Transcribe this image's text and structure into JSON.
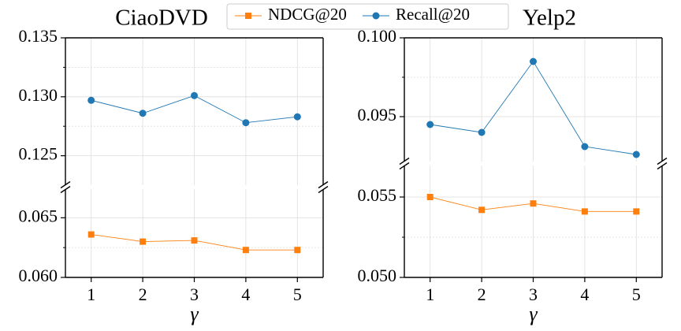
{
  "chart_data": [
    {
      "type": "line",
      "title": "CiaoDVD",
      "xlabel": "γ",
      "x": [
        1,
        2,
        3,
        4,
        5
      ],
      "xlim": [
        0.5,
        5.5
      ],
      "xticks": [
        1,
        2,
        3,
        4,
        5
      ],
      "grid": true,
      "legend": "top center",
      "panels": [
        {
          "ylim": [
            0.1225,
            0.135
          ],
          "yticks": [
            0.125,
            {
              "value": 0.13,
              "label": "0.130"
            },
            0.135
          ],
          "minor_yticks": [
            0.1275,
            0.1325
          ]
        },
        {
          "ylim": [
            0.06,
            0.0674
          ],
          "yticks": [
            {
              "value": 0.06,
              "label": "0.060"
            },
            0.065
          ],
          "minor_yticks": [
            0.0625
          ]
        }
      ],
      "series": [
        {
          "name": "NDCG@20",
          "color": "#ff7f0e",
          "marker": "square",
          "values": [
            0.0636,
            0.063,
            0.0631,
            0.0623,
            0.0623
          ]
        },
        {
          "name": "Recall@20",
          "color": "#1f77b4",
          "marker": "circle",
          "values": [
            0.1297,
            0.1286,
            0.1301,
            0.1278,
            0.1283
          ]
        }
      ]
    },
    {
      "type": "line",
      "title": "Yelp2",
      "xlabel": "γ",
      "x": [
        1,
        2,
        3,
        4,
        5
      ],
      "xlim": [
        0.5,
        5.5
      ],
      "xticks": [
        1,
        2,
        3,
        4,
        5
      ],
      "grid": true,
      "panels": [
        {
          "ylim": [
            0.09215,
            0.1
          ],
          "yticks": [
            0.095,
            {
              "value": 0.1,
              "label": "0.100"
            }
          ],
          "minor_yticks": [
            0.0975
          ]
        },
        {
          "ylim": [
            0.05,
            0.05696
          ],
          "yticks": [
            {
              "value": 0.05,
              "label": "0.050"
            },
            0.055
          ],
          "minor_yticks": [
            0.0525
          ]
        }
      ],
      "series": [
        {
          "color": "#ff7f0e",
          "marker": "square",
          "values": [
            0.055,
            0.0542,
            0.0546,
            0.0541,
            0.0541
          ]
        },
        {
          "color": "#1f77b4",
          "marker": "circle",
          "values": [
            0.0945,
            0.094,
            0.0985,
            0.0931,
            0.0926
          ]
        }
      ]
    }
  ]
}
